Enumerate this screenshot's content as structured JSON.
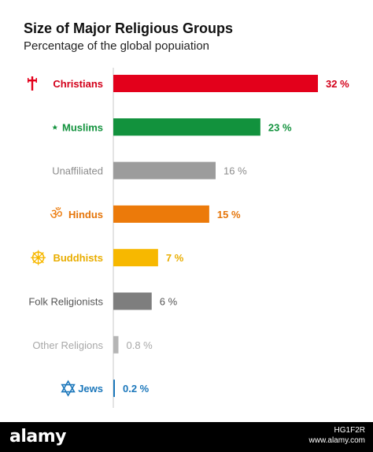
{
  "chart_data": {
    "type": "bar",
    "orientation": "horizontal",
    "title": "Size of Major Religious Groups",
    "subtitle": "Percentage of the global popuiation",
    "categories": [
      "Christians",
      "Muslims",
      "Unaffiliated",
      "Hindus",
      "Buddhists",
      "Folk Religionists",
      "Other Religions",
      "Jews"
    ],
    "values": [
      32,
      23,
      16,
      15,
      7,
      6,
      0.8,
      0.2
    ],
    "value_labels": [
      "32 %",
      "23 %",
      "16 %",
      "15 %",
      "7 %",
      "6 %",
      "0.8 %",
      "0.2 %"
    ],
    "colors": [
      "#e3001b",
      "#12923d",
      "#9c9c9c",
      "#ec7a0a",
      "#f7b800",
      "#7e7e7e",
      "#b5b5b5",
      "#1b77bb"
    ],
    "label_colors": [
      "#d3001a",
      "#12923d",
      "#8c8c8c",
      "#e57509",
      "#e9ad00",
      "#555555",
      "#a8a8a8",
      "#1b77bb"
    ],
    "icons": [
      "cross-icon",
      "crescent-star-icon",
      "",
      "om-icon",
      "dharma-wheel-icon",
      "",
      "",
      "star-of-david-icon"
    ],
    "xlim": [
      0,
      32
    ],
    "grid": false,
    "legend": "none"
  },
  "watermark": {
    "brand": "alamy",
    "image_id": "HG1F2R",
    "url": "www.alamy.com"
  }
}
